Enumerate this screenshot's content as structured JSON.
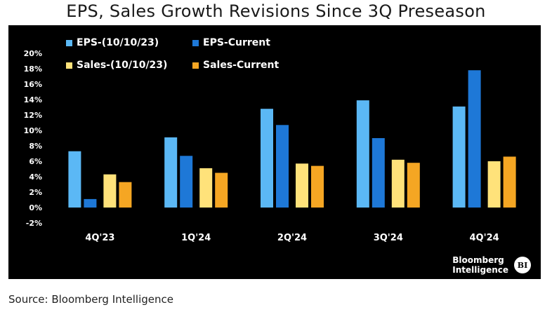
{
  "title": "EPS, Sales Growth Revisions Since 3Q Preseason",
  "source": "Source: Bloomberg Intelligence",
  "brand": {
    "line1": "Bloomberg",
    "line2": "Intelligence",
    "badge": "BI"
  },
  "chart_data": {
    "type": "bar",
    "categories": [
      "4Q'23",
      "1Q'24",
      "2Q'24",
      "3Q'24",
      "4Q'24"
    ],
    "series": [
      {
        "name": "EPS-(10/10/23)",
        "color": "#5BB8F5",
        "values": [
          7.3,
          9.1,
          12.8,
          13.9,
          13.1
        ]
      },
      {
        "name": "EPS-Current",
        "color": "#1E78D7",
        "values": [
          1.1,
          6.7,
          10.7,
          9.0,
          17.8
        ]
      },
      {
        "name": "Sales-(10/10/23)",
        "color": "#FFE27A",
        "values": [
          4.3,
          5.1,
          5.7,
          6.2,
          6.0
        ]
      },
      {
        "name": "Sales-Current",
        "color": "#F5A623",
        "values": [
          3.3,
          4.5,
          5.4,
          5.8,
          6.6
        ]
      }
    ],
    "yticks": [
      "20%",
      "18%",
      "16%",
      "14%",
      "12%",
      "10%",
      "8%",
      "6%",
      "4%",
      "2%",
      "0%",
      "-2%"
    ],
    "ylim": [
      -2,
      20
    ],
    "legend_position": "top-left",
    "grid": false
  }
}
